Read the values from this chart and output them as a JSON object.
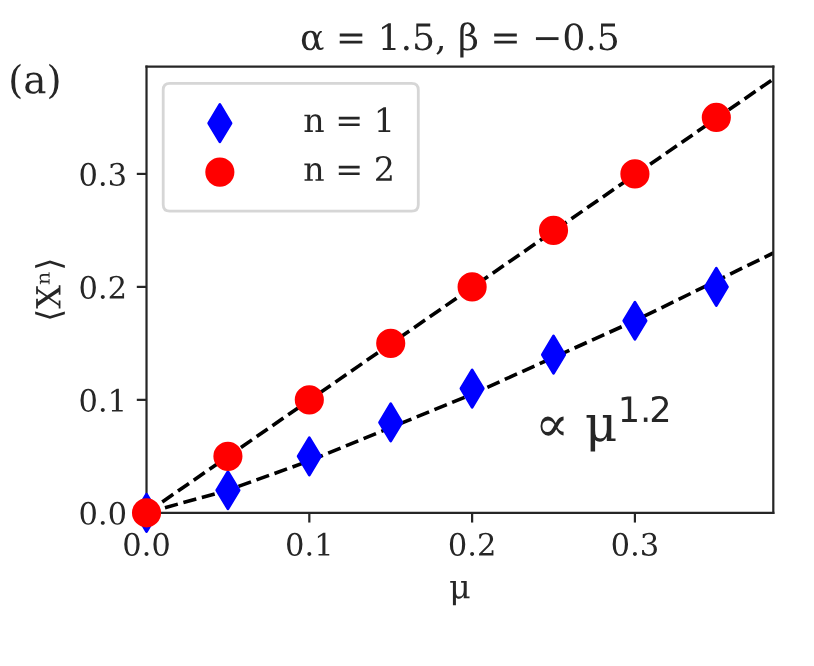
{
  "chart_data": {
    "type": "scatter",
    "title": "α = 1.5, β = −0.5",
    "xlabel": "μ",
    "ylabel": "⟨Xⁿ⟩",
    "annotations": [
      "(a)",
      "∝ μ$^{1.2}$"
    ],
    "xlim": [
      0,
      0.385
    ],
    "ylim": [
      0,
      0.395
    ],
    "xticks": [
      {
        "value": 0,
        "label": "0.0"
      },
      0.1,
      0.2,
      0.3
    ],
    "yticks": [
      {
        "value": 0,
        "label": "0.0"
      },
      0.1,
      0.2,
      0.3
    ],
    "grid": false,
    "legend": "top left",
    "series": [
      {
        "name": "n = 1",
        "color": "#0000ff",
        "marker": "diamond",
        "x": [
          0,
          0.05,
          0.1,
          0.15,
          0.2,
          0.25,
          0.3,
          0.35
        ],
        "values": [
          0,
          0.02,
          0.05,
          0.08,
          0.11,
          0.14,
          0.17,
          0.2
        ]
      },
      {
        "name": "n = 2",
        "color": "#ff0000",
        "marker": "circle",
        "x": [
          0,
          0.05,
          0.1,
          0.15,
          0.2,
          0.25,
          0.3,
          0.35
        ],
        "values": [
          0,
          0.05,
          0.1,
          0.15,
          0.2,
          0.25,
          0.3,
          0.35
        ]
      },
      {
        "type": "line",
        "color": "#000000",
        "line_style": "dashed",
        "marker": "none",
        "x": [
          0,
          0.05,
          0.1,
          0.2,
          0.3,
          0.385
        ],
        "values": [
          0,
          0.02,
          0.046,
          0.105,
          0.17,
          0.23
        ]
      },
      {
        "type": "line",
        "color": "#000000",
        "line_style": "dashed",
        "marker": "none",
        "x": [
          0,
          0.385
        ],
        "values": [
          0,
          0.384
        ]
      }
    ]
  }
}
